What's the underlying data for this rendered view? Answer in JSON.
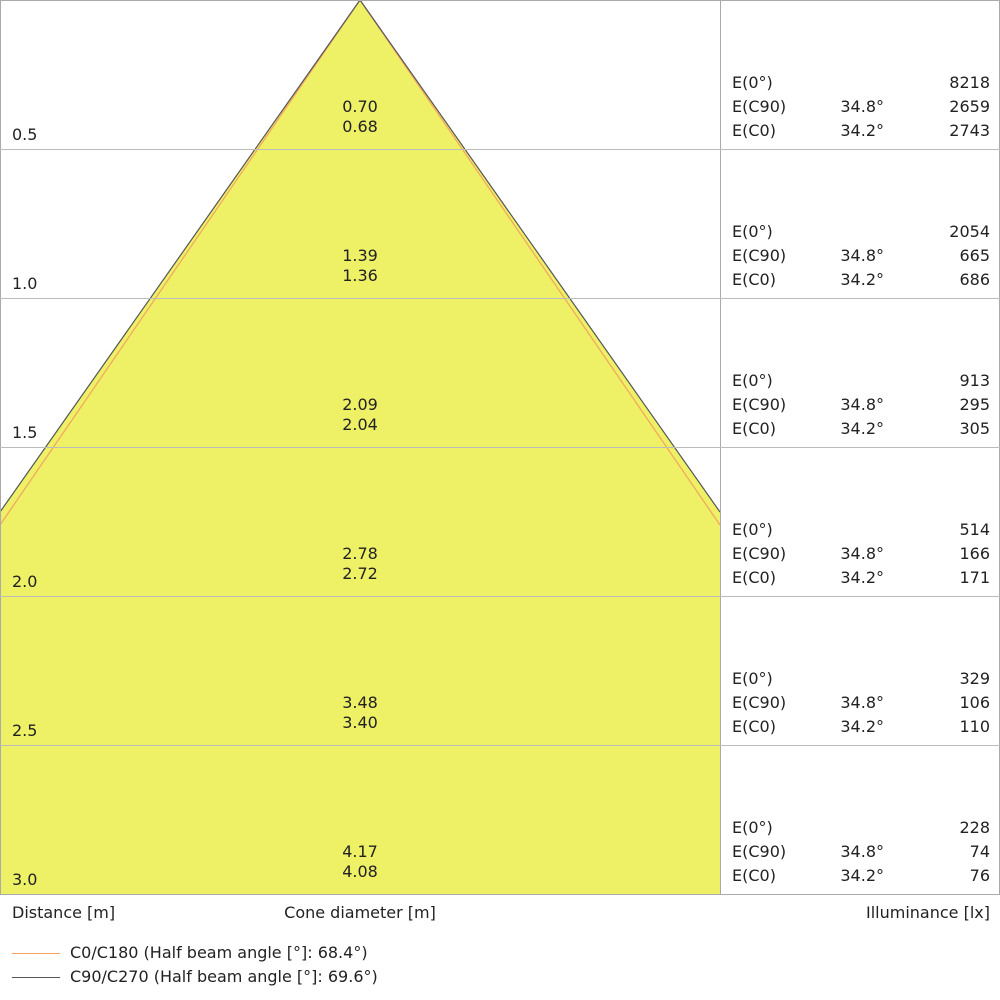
{
  "chart_data": {
    "type": "cone-diagram",
    "xlabel": "Distance [m]",
    "center_label": "Cone diameter [m]",
    "right_label": "Illuminance [lx]",
    "fill_color": "#eef066",
    "legend": [
      {
        "name": "C0/C180 (Half beam angle [°]: 68.4°)",
        "color": "#f4a460",
        "half_beam_angle": 68.4
      },
      {
        "name": "C90/C270 (Half beam angle [°]: 69.6°)",
        "color": "#555555",
        "half_beam_angle": 69.6
      }
    ],
    "rows": [
      {
        "distance": "0.5",
        "d1": "0.70",
        "d2": "0.68",
        "e0": "8218",
        "ec90_angle": "34.8°",
        "ec90": "2659",
        "ec0_angle": "34.2°",
        "ec0": "2743"
      },
      {
        "distance": "1.0",
        "d1": "1.39",
        "d2": "1.36",
        "e0": "2054",
        "ec90_angle": "34.8°",
        "ec90": "665",
        "ec0_angle": "34.2°",
        "ec0": "686"
      },
      {
        "distance": "1.5",
        "d1": "2.09",
        "d2": "2.04",
        "e0": "913",
        "ec90_angle": "34.8°",
        "ec90": "295",
        "ec0_angle": "34.2°",
        "ec0": "305"
      },
      {
        "distance": "2.0",
        "d1": "2.78",
        "d2": "2.72",
        "e0": "514",
        "ec90_angle": "34.8°",
        "ec90": "166",
        "ec0_angle": "34.2°",
        "ec0": "171"
      },
      {
        "distance": "2.5",
        "d1": "3.48",
        "d2": "3.40",
        "e0": "329",
        "ec90_angle": "34.8°",
        "ec90": "106",
        "ec0_angle": "34.2°",
        "ec0": "110"
      },
      {
        "distance": "3.0",
        "d1": "4.17",
        "d2": "4.08",
        "e0": "228",
        "ec90_angle": "34.8°",
        "ec90": "74",
        "ec0_angle": "34.2°",
        "ec0": "76"
      }
    ],
    "labels": {
      "e0": "E(0°)",
      "ec90": "E(C90)",
      "ec0": "E(C0)"
    }
  }
}
